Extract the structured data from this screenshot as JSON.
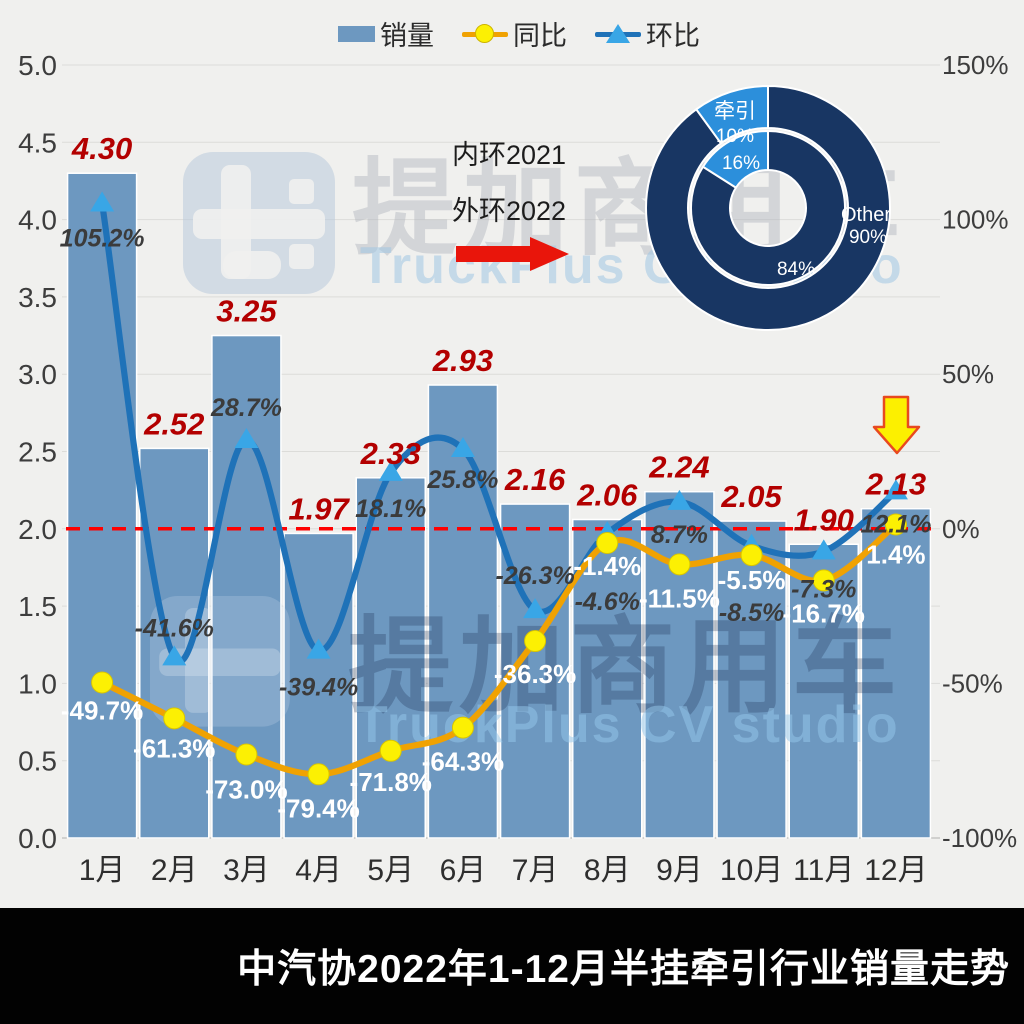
{
  "page": {
    "background": "#f0f0ee",
    "footer_title": "中汽协2022年1-12月半挂牵引行业销量走势"
  },
  "legend": {
    "items": [
      {
        "label": "销量",
        "type": "bar-swatch",
        "color": "#6D98C0"
      },
      {
        "label": "同比",
        "type": "line-circle",
        "line_color": "#F0A202",
        "marker_color": "#FCF003"
      },
      {
        "label": "环比",
        "type": "line-triangle",
        "line_color": "#1F72B8",
        "marker_color": "#39A6E6"
      }
    ]
  },
  "chart_data": {
    "type": "combo-bar-line",
    "title": "中汽协2022年1-12月半挂牵引行业销量走势",
    "categories": [
      "1月",
      "2月",
      "3月",
      "4月",
      "5月",
      "6月",
      "7月",
      "8月",
      "9月",
      "10月",
      "11月",
      "12月"
    ],
    "bar_series": {
      "name": "销量",
      "axis": "left",
      "color": "#6D98C0",
      "values": [
        4.3,
        2.52,
        3.25,
        1.97,
        2.33,
        2.93,
        2.16,
        2.06,
        2.24,
        2.05,
        1.9,
        2.13
      ],
      "labels": [
        "4.30",
        "2.52",
        "3.25",
        "1.97",
        "2.33",
        "2.93",
        "2.16",
        "2.06",
        "2.24",
        "2.05",
        "1.90",
        "2.13"
      ],
      "label_color": "#B30000"
    },
    "line_series": [
      {
        "name": "环比",
        "axis": "right",
        "color": "#1F72B8",
        "marker": "triangle",
        "marker_color": "#39A6E6",
        "values_pct": [
          105.2,
          -41.6,
          28.7,
          -39.4,
          18.1,
          25.8,
          -26.3,
          -1.4,
          8.7,
          -5.5,
          -7.3,
          12.1
        ],
        "labels": [
          "105.2%",
          "-41.6%",
          "28.7%",
          "-39.4%",
          "18.1%",
          "25.8%",
          "-26.3%",
          "-1.4%",
          "8.7%",
          "-5.5%",
          "-7.3%",
          "12.1%"
        ],
        "label_styles": [
          "dark",
          "dark",
          "dark",
          "dark",
          "dark",
          "dark",
          "dark",
          "white",
          "dark",
          "white",
          "dark",
          "dark"
        ],
        "label_dy": [
          34,
          -30,
          -33,
          36,
          35,
          30,
          -35,
          33,
          32,
          34,
          37,
          32
        ]
      },
      {
        "name": "同比",
        "axis": "right",
        "color": "#F0A202",
        "marker": "circle",
        "marker_color": "#FCF003",
        "values_pct": [
          -49.7,
          -61.3,
          -73.0,
          -79.4,
          -71.8,
          -64.3,
          -36.3,
          -4.6,
          -11.5,
          -8.5,
          -16.7,
          1.4
        ],
        "labels": [
          "-49.7%",
          "-61.3%",
          "-73.0%",
          "-79.4%",
          "-71.8%",
          "-64.3%",
          "-36.3%",
          "-4.6%",
          "-11.5%",
          "-8.5%",
          "-16.7%",
          "1.4%"
        ],
        "label_styles": [
          "white",
          "white",
          "white",
          "white",
          "white",
          "white",
          "white",
          "dark",
          "white",
          "dark",
          "white",
          "white"
        ],
        "label_dy": [
          28,
          30,
          35,
          34,
          31,
          34,
          33,
          58,
          34,
          57,
          33,
          30
        ]
      }
    ],
    "left_axis": {
      "min": 0,
      "max": 5,
      "step": 0.5,
      "tick_labels": [
        "0.0",
        "0.5",
        "1.0",
        "1.5",
        "2.0",
        "2.5",
        "3.0",
        "3.5",
        "4.0",
        "4.5",
        "5.0"
      ]
    },
    "right_axis": {
      "min": -100,
      "max": 150,
      "tick_values": [
        -100,
        -50,
        0,
        50,
        100,
        150
      ],
      "tick_labels": [
        "-100%",
        "-50%",
        "0%",
        "50%",
        "100%",
        "150%"
      ]
    },
    "reference_line": {
      "right_value": 0,
      "color": "#FE0101",
      "style": "dashed"
    },
    "grid": true,
    "legend_position": "top"
  },
  "donut": {
    "annotation_inner": "内环2021",
    "annotation_outer": "外环2022",
    "color_main": "#183663",
    "color_highlight": "#2C8FDB",
    "outer_ring_year": "2022",
    "inner_ring_year": "2021",
    "outer": [
      {
        "name": "Other",
        "pct": 90,
        "pct_label": "90%"
      },
      {
        "name": "牵引",
        "pct": 10,
        "pct_label": "10%"
      }
    ],
    "inner": [
      {
        "pct": 84,
        "pct_label": "84%"
      },
      {
        "pct": 16,
        "pct_label": "16%"
      }
    ]
  },
  "annotations": {
    "flow_arrow": {
      "shape": "right-arrow",
      "color": "#E9150B"
    },
    "highlight_arrow": {
      "shape": "down-arrow",
      "color": "#FCF000",
      "outline": "#E8491F",
      "points_to": "12月"
    }
  },
  "watermark": {
    "cn": "提加商用车",
    "en": "TruckPlus CV studio"
  }
}
